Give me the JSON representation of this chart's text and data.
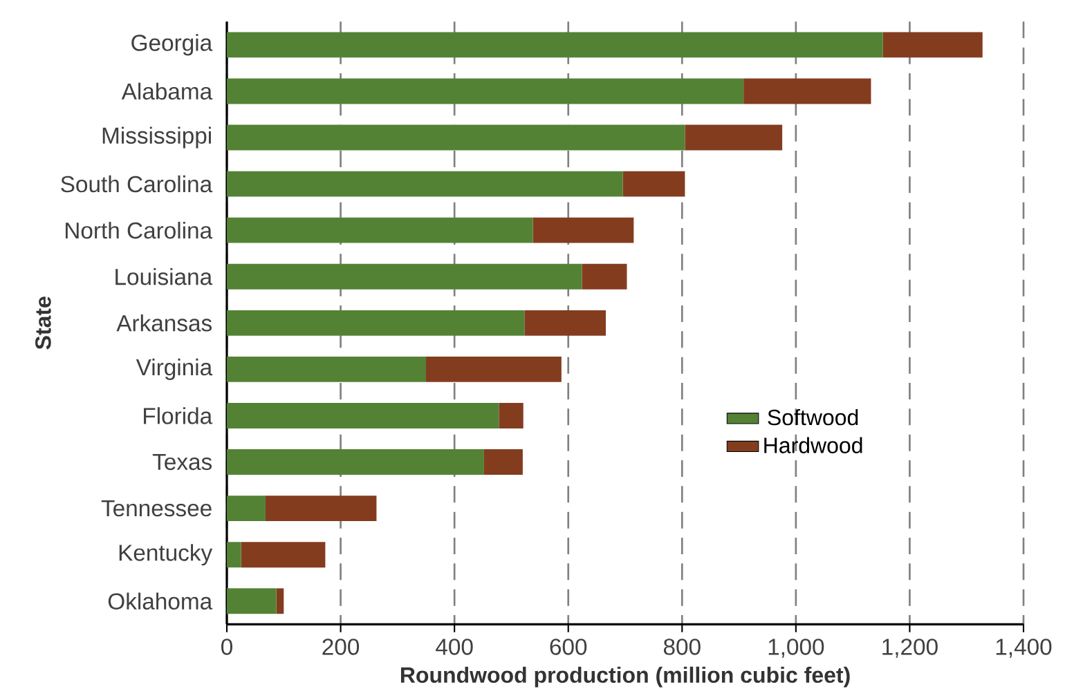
{
  "chart_data": {
    "type": "bar",
    "orientation": "horizontal",
    "stacked": true,
    "xlabel": "Roundwood production (million cubic feet)",
    "ylabel": "State",
    "categories": [
      "Georgia",
      "Alabama",
      "Mississippi",
      "South Carolina",
      "North Carolina",
      "Louisiana",
      "Arkansas",
      "Virginia",
      "Florida",
      "Texas",
      "Tennessee",
      "Kentucky",
      "Oklahoma"
    ],
    "series": [
      {
        "name": "Softwood",
        "color": "#548235",
        "values": [
          1153,
          908,
          805,
          696,
          538,
          624,
          523,
          350,
          478,
          452,
          68,
          25,
          87
        ]
      },
      {
        "name": "Hardwood",
        "color": "#843c1f",
        "values": [
          175,
          224,
          171,
          109,
          177,
          79,
          143,
          238,
          43,
          68,
          195,
          148,
          13
        ]
      }
    ],
    "xlim": [
      0,
      1400
    ],
    "xticks": [
      0,
      200,
      400,
      600,
      800,
      {
        "value": 1000,
        "label": "1,000"
      },
      {
        "value": 1200,
        "label": "1,200"
      },
      {
        "value": 1400,
        "label": "1,400"
      }
    ],
    "grid": "x",
    "legend": "right"
  }
}
